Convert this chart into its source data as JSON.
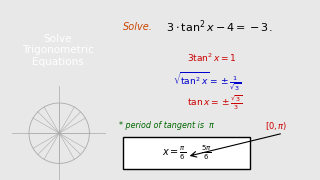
{
  "bg_left": "#3d3d3d",
  "bg_right": "#e8e8e8",
  "left_title": "Solve\nTrigonometric\nEquations",
  "left_title_color": "#ffffff",
  "solve_label": "Solve.",
  "solve_label_color": "#cc4400",
  "main_eq": "$3 \\cdot \\tan^2 x - 4 = -3.$",
  "main_eq_color": "#000000",
  "step1": "$3\\tan^2x = 1$",
  "step1_color": "#cc0000",
  "step2": "$\\sqrt{\\tan^2x} = \\pm\\!\\frac{1}{\\sqrt{3}}$",
  "step2_color": "#0000cc",
  "step3": "$\\tan x = \\pm\\frac{\\sqrt{3}}{3}$",
  "step3_color": "#cc0000",
  "period_note": "* period of tangent is  π",
  "period_note_color": "#006600",
  "interval": "$[0, \\pi)$",
  "interval_color": "#cc0000",
  "answer": "$x = \\frac{\\pi}{6}$  ,  $\\frac{5\\pi}{6}$",
  "answer_color": "#000000",
  "circle_color": "#555555"
}
